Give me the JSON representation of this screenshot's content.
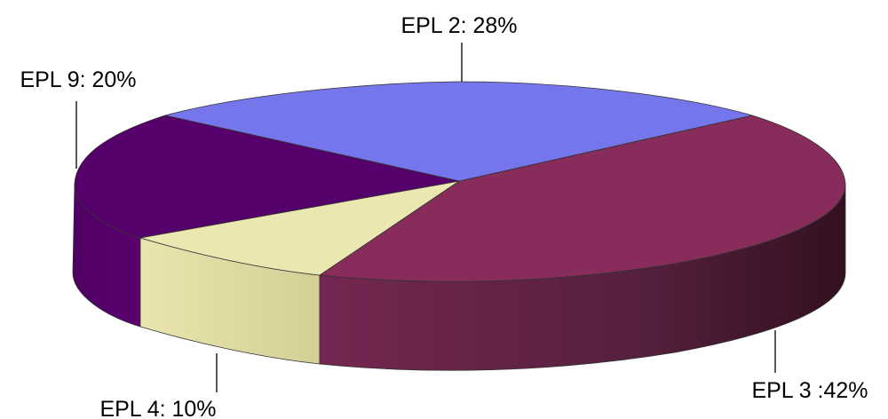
{
  "chart_data": {
    "type": "pie",
    "style": "3d",
    "slices": [
      {
        "label": "EPL 2: 28%",
        "value": 28,
        "color": "#7676ec"
      },
      {
        "label": "EPL 3 :42%",
        "value": 42,
        "color": "#882c5c"
      },
      {
        "label": "EPL 4: 10%",
        "value": 10,
        "color": "#ebe7b1"
      },
      {
        "label": "EPL 9: 20%",
        "value": 20,
        "color": "#56006b"
      }
    ],
    "legend": "none"
  }
}
